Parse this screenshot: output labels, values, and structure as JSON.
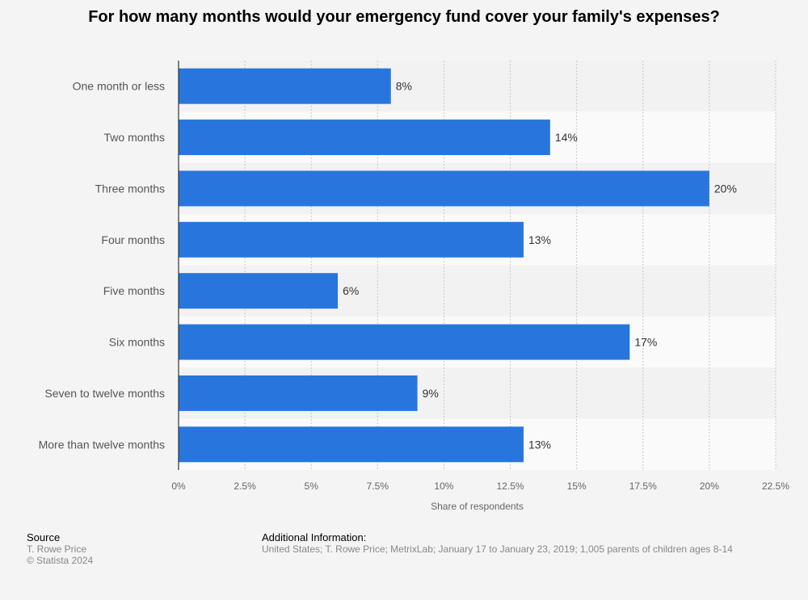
{
  "chart_data": {
    "type": "bar",
    "orientation": "horizontal",
    "title": "For how many months would your emergency fund cover your family's expenses?",
    "categories": [
      "One month or less",
      "Two months",
      "Three months",
      "Four months",
      "Five months",
      "Six months",
      "Seven to twelve months",
      "More than twelve months"
    ],
    "values": [
      8,
      14,
      20,
      13,
      6,
      17,
      9,
      13
    ],
    "value_labels": [
      "8%",
      "14%",
      "20%",
      "13%",
      "6%",
      "17%",
      "9%",
      "13%"
    ],
    "xlabel": "Share of respondents",
    "ylabel": "",
    "xlim": [
      0,
      22.5
    ],
    "xticks": [
      "0%",
      "2.5%",
      "5%",
      "7.5%",
      "10%",
      "12.5%",
      "15%",
      "17.5%",
      "20%",
      "22.5%"
    ],
    "grid": true,
    "bar_color": "#2876dd"
  },
  "footer": {
    "source_heading": "Source",
    "source_name": "T. Rowe Price",
    "copyright": "© Statista 2024",
    "info_heading": "Additional Information:",
    "info_text": "United States; T. Rowe Price; MetrixLab; January 17 to January 23, 2019; 1,005 parents of children ages 8-14"
  }
}
